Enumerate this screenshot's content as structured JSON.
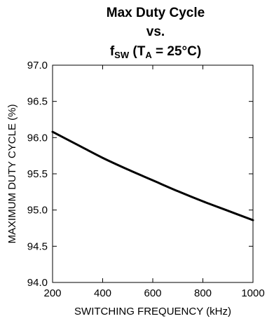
{
  "chart_data": {
    "type": "line",
    "title_line1": "Max Duty Cycle",
    "title_line2": "vs.",
    "title_line3": {
      "f": "f",
      "f_sub": "SW",
      "paren_open": " (T",
      "t_sub": "A",
      "cond": " = 25°C)"
    },
    "xlabel": "SWITCHING FREQUENCY (kHz)",
    "ylabel": "MAXIMUM DUTY CYCLE (%)",
    "xlim": [
      200,
      1000
    ],
    "ylim": [
      94.0,
      97.0
    ],
    "x_ticks": [
      "200",
      "400",
      "600",
      "800",
      "1000"
    ],
    "y_ticks": [
      "94.0",
      "94.5",
      "95.0",
      "95.5",
      "96.0",
      "96.5",
      "97.0"
    ],
    "grid": false,
    "line_color": "#000000",
    "series": [
      {
        "x": [
          200,
          300,
          400,
          500,
          600,
          700,
          800,
          900,
          1000
        ],
        "values": [
          96.08,
          95.9,
          95.72,
          95.56,
          95.41,
          95.26,
          95.12,
          94.99,
          94.86
        ]
      }
    ]
  }
}
